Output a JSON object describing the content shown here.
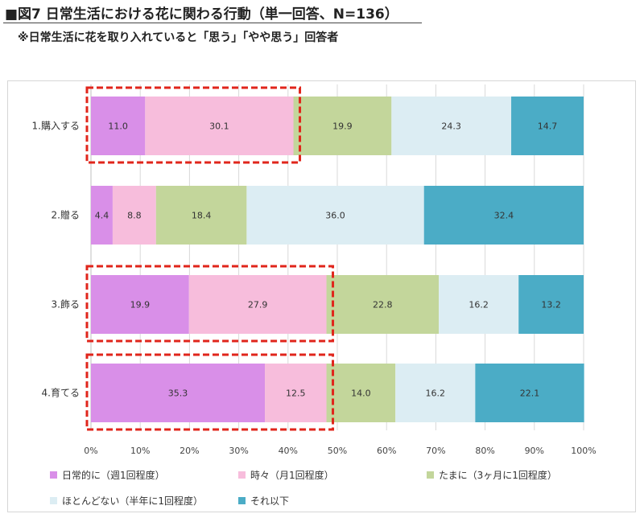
{
  "title": "■図7 日常生活における花に関わる行動（単一回答、N=136）",
  "subtitle": "※日常生活に花を取り入れていると「思う」「やや思う」回答者",
  "chart_data": {
    "type": "bar",
    "orientation": "horizontal",
    "stacked": true,
    "categories": [
      "1.購入する",
      "2.贈る",
      "3.飾る",
      "4.育てる"
    ],
    "series": [
      {
        "name": "日常的に（週1回程度）",
        "color": "#d98fe8",
        "values": [
          11.0,
          4.4,
          19.9,
          35.3
        ]
      },
      {
        "name": "時々（月1回程度）",
        "color": "#f7bddc",
        "values": [
          30.1,
          8.8,
          27.9,
          12.5
        ]
      },
      {
        "name": "たまに（3ヶ月に1回程度）",
        "color": "#c3d69b",
        "values": [
          19.9,
          18.4,
          22.8,
          14.0
        ]
      },
      {
        "name": "ほとんどない（半年に1回程度）",
        "color": "#dcedf3",
        "values": [
          24.3,
          36.0,
          16.2,
          16.2
        ]
      },
      {
        "name": "それ以下",
        "color": "#4bacc6",
        "values": [
          14.7,
          32.4,
          13.2,
          22.1
        ]
      }
    ],
    "xlim": [
      0,
      100
    ],
    "x_ticks": [
      "0%",
      "10%",
      "20%",
      "30%",
      "40%",
      "50%",
      "60%",
      "70%",
      "80%",
      "90%",
      "100%"
    ],
    "grid": true,
    "legend_position": "bottom",
    "highlight": {
      "color": "#e0251b",
      "style": "dashed",
      "series_index_end": 1
    }
  }
}
